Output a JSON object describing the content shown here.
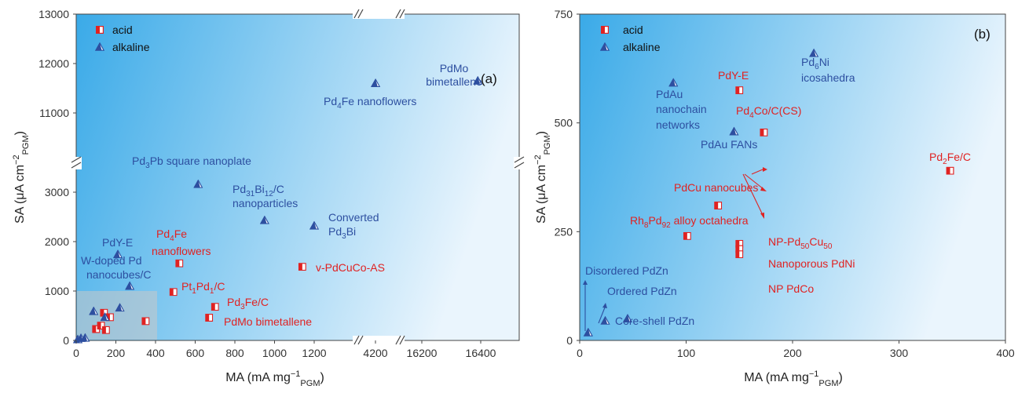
{
  "colors": {
    "acid": "#e02222",
    "alkaline": "#2d4fa0",
    "bg_start": "#3aaae8",
    "bg_end": "#eaf5fd"
  },
  "chart_data": [
    {
      "type": "scatter",
      "panel": "(a)",
      "xlabel": "MA (mA mg⁻¹PGM)",
      "ylabel": "SA (μA cm⁻²PGM)",
      "x_axis_broken": true,
      "y_axis_broken": true,
      "xticks": [
        "0",
        "200",
        "400",
        "600",
        "800",
        "1000",
        "1200",
        "4200",
        "16200",
        "16400"
      ],
      "yticks": [
        "0",
        "1000",
        "2000",
        "3000",
        "11000",
        "12000",
        "13000"
      ],
      "legend": [
        "acid",
        "alkaline"
      ],
      "legend_position": "top-left",
      "series": [
        {
          "name": "acid",
          "points": [
            {
              "x": 520,
              "y": 1560
            },
            {
              "x": 490,
              "y": 980
            },
            {
              "x": 700,
              "y": 680
            },
            {
              "x": 670,
              "y": 460
            },
            {
              "x": 1140,
              "y": 1490
            },
            {
              "x": 100,
              "y": 230
            },
            {
              "x": 125,
              "y": 300
            },
            {
              "x": 140,
              "y": 560
            },
            {
              "x": 150,
              "y": 210
            },
            {
              "x": 170,
              "y": 470
            },
            {
              "x": 350,
              "y": 390
            }
          ]
        },
        {
          "name": "alkaline",
          "points": [
            {
              "x": 4220,
              "y": 11600
            },
            {
              "x": 16390,
              "y": 11650
            },
            {
              "x": 615,
              "y": 3160
            },
            {
              "x": 950,
              "y": 2430
            },
            {
              "x": 1200,
              "y": 2320
            },
            {
              "x": 210,
              "y": 1740
            },
            {
              "x": 270,
              "y": 1100
            },
            {
              "x": 220,
              "y": 660
            },
            {
              "x": 88,
              "y": 590
            },
            {
              "x": 145,
              "y": 470
            },
            {
              "x": 8,
              "y": 20
            },
            {
              "x": 24,
              "y": 45
            },
            {
              "x": 45,
              "y": 50
            }
          ]
        }
      ],
      "annotations": [
        "PdMo bimetallene",
        "Pd4Fe nanoflowers",
        "Pd3Pb square nanoplate",
        "Pd31Bi12/C nanoparticles",
        "Converted Pd3Bi",
        "PdY-E",
        "Pd4Fe nanoflowers",
        "W-doped Pd nanocubes/C",
        "Pt1Pd1/C",
        "Pd3Fe/C",
        "PdMo bimetallene",
        "v-PdCuCo-AS"
      ]
    },
    {
      "type": "scatter",
      "panel": "(b)",
      "xlabel": "MA (mA mg⁻¹PGM)",
      "ylabel": "SA (μA cm⁻²PGM)",
      "xlim": [
        0,
        400
      ],
      "ylim": [
        0,
        750
      ],
      "xticks": [
        "0",
        "100",
        "200",
        "300",
        "400"
      ],
      "yticks": [
        "0",
        "250",
        "500",
        "750"
      ],
      "legend": [
        "acid",
        "alkaline"
      ],
      "legend_position": "top-left",
      "series": [
        {
          "name": "acid",
          "points": [
            {
              "x": 150,
              "y": 575,
              "label": "PdY-E"
            },
            {
              "x": 173,
              "y": 478,
              "label": "Pd4Co/C(CS)"
            },
            {
              "x": 348,
              "y": 390,
              "label": "Pd2Fe/C"
            },
            {
              "x": 130,
              "y": 310,
              "label": "PdCu nanocubes"
            },
            {
              "x": 101,
              "y": 240,
              "label": "Rh8Pd92 alloy octahedra"
            },
            {
              "x": 150,
              "y": 222,
              "label": "NP-Pd50Cu50"
            },
            {
              "x": 150,
              "y": 210,
              "label": "Nanoporous PdNi"
            },
            {
              "x": 150,
              "y": 198,
              "label": "NP PdCo"
            }
          ]
        },
        {
          "name": "alkaline",
          "points": [
            {
              "x": 220,
              "y": 660,
              "label": "Pd6Ni icosahedra"
            },
            {
              "x": 88,
              "y": 592,
              "label": "PdAu nanochain networks"
            },
            {
              "x": 145,
              "y": 480,
              "label": "PdAu FANs"
            },
            {
              "x": 8,
              "y": 18,
              "label": "Disordered PdZn"
            },
            {
              "x": 24,
              "y": 45,
              "label": "Ordered PdZn"
            },
            {
              "x": 45,
              "y": 50,
              "label": "Core-shell PdZn"
            }
          ]
        }
      ]
    }
  ],
  "panel_a": {
    "panel_label": "(a)",
    "legend_acid": "acid",
    "legend_alkaline": "alkaline",
    "xticks": [
      "0",
      "200",
      "400",
      "600",
      "800",
      "1000",
      "1200",
      "4200",
      "16200",
      "16400"
    ],
    "yticks": [
      "0",
      "1000",
      "2000",
      "3000",
      "11000",
      "12000",
      "13000"
    ]
  },
  "panel_b": {
    "panel_label": "(b)",
    "legend_acid": "acid",
    "legend_alkaline": "alkaline",
    "xticks": [
      "0",
      "100",
      "200",
      "300",
      "400"
    ],
    "yticks": [
      "0",
      "250",
      "500",
      "750"
    ]
  }
}
